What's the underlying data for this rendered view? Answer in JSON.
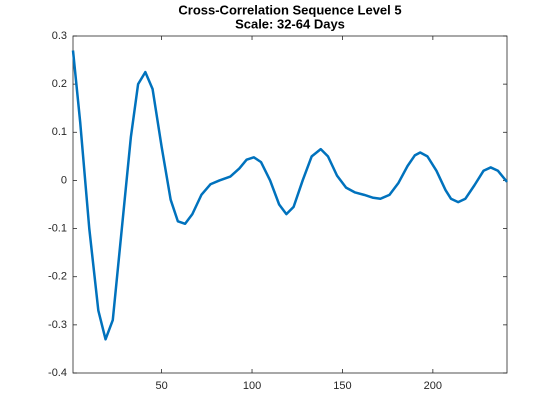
{
  "chart_data": {
    "type": "line",
    "title": "Cross-Correlation Sequence Level 5",
    "subtitle": "Scale: 32-64 Days",
    "x": [
      1,
      5,
      10,
      15,
      19,
      23,
      28,
      33,
      37,
      41,
      45,
      50,
      55,
      59,
      63,
      67,
      72,
      77,
      82,
      88,
      93,
      97,
      101,
      105,
      110,
      115,
      119,
      123,
      128,
      133,
      138,
      142,
      147,
      152,
      157,
      162,
      167,
      171,
      176,
      181,
      186,
      190,
      193,
      197,
      202,
      207,
      210,
      214,
      218,
      223,
      228,
      232,
      236,
      241
    ],
    "series": [
      {
        "color": "#0072bd",
        "values": [
          0.27,
          0.12,
          -0.1,
          -0.27,
          -0.33,
          -0.29,
          -0.1,
          0.09,
          0.2,
          0.225,
          0.19,
          0.07,
          -0.04,
          -0.085,
          -0.09,
          -0.07,
          -0.03,
          -0.008,
          0.0,
          0.008,
          0.025,
          0.043,
          0.048,
          0.038,
          0.0,
          -0.05,
          -0.07,
          -0.055,
          0.0,
          0.05,
          0.065,
          0.05,
          0.01,
          -0.015,
          -0.025,
          -0.03,
          -0.036,
          -0.038,
          -0.03,
          -0.005,
          0.03,
          0.052,
          0.058,
          0.05,
          0.02,
          -0.02,
          -0.038,
          -0.045,
          -0.038,
          -0.01,
          0.02,
          0.027,
          0.02,
          -0.003
        ]
      }
    ],
    "xlim": [
      1,
      241
    ],
    "xticks": [
      50,
      100,
      150,
      200
    ],
    "ylim": [
      -0.4,
      0.3
    ],
    "yticks": [
      -0.4,
      -0.3,
      -0.2,
      -0.1,
      0,
      0.1,
      0.2,
      0.3
    ]
  }
}
